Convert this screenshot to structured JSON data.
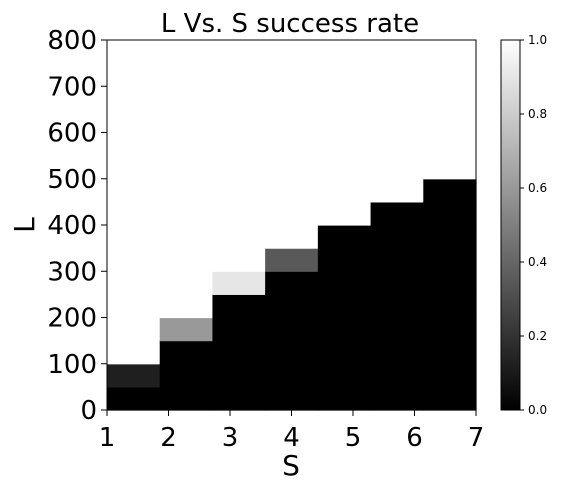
{
  "chart_data": {
    "type": "heatmap",
    "title": "L Vs. S success rate",
    "xlabel": "S",
    "ylabel": "L",
    "xlim": [
      1,
      7
    ],
    "ylim": [
      0,
      800
    ],
    "x_ticks": [
      "1",
      "2",
      "3",
      "4",
      "5",
      "6",
      "7"
    ],
    "y_ticks": [
      "0",
      "100",
      "200",
      "300",
      "400",
      "500",
      "600",
      "700",
      "800"
    ],
    "colormap": "gray",
    "colorbar": {
      "range": [
        0.0,
        1.0
      ],
      "ticks": [
        "0.0",
        "0.2",
        "0.4",
        "0.6",
        "0.8",
        "1.0"
      ]
    },
    "s_values": [
      1,
      2,
      3,
      4,
      5,
      6,
      7
    ],
    "l_values": [
      0,
      50,
      100,
      150,
      200,
      250,
      300,
      350,
      400,
      450,
      500,
      550,
      600,
      650,
      700,
      750,
      800
    ],
    "success_rate": [
      [
        0.0,
        0.12,
        1.0,
        1.0,
        1.0,
        1.0,
        1.0,
        1.0,
        1.0,
        1.0,
        1.0,
        1.0,
        1.0,
        1.0,
        1.0,
        1.0
      ],
      [
        0.0,
        0.0,
        0.0,
        0.6,
        1.0,
        1.0,
        1.0,
        1.0,
        1.0,
        1.0,
        1.0,
        1.0,
        1.0,
        1.0,
        1.0,
        1.0
      ],
      [
        0.0,
        0.0,
        0.0,
        0.0,
        0.0,
        0.9,
        1.0,
        1.0,
        1.0,
        1.0,
        1.0,
        1.0,
        1.0,
        1.0,
        1.0,
        1.0
      ],
      [
        0.0,
        0.0,
        0.0,
        0.0,
        0.0,
        0.0,
        0.35,
        1.0,
        1.0,
        1.0,
        1.0,
        1.0,
        1.0,
        1.0,
        1.0,
        1.0
      ],
      [
        0.0,
        0.0,
        0.0,
        0.0,
        0.0,
        0.0,
        0.0,
        0.0,
        1.0,
        1.0,
        1.0,
        1.0,
        1.0,
        1.0,
        1.0,
        1.0
      ],
      [
        0.0,
        0.0,
        0.0,
        0.0,
        0.0,
        0.0,
        0.0,
        0.0,
        0.0,
        1.0,
        1.0,
        1.0,
        1.0,
        1.0,
        1.0,
        1.0
      ],
      [
        0.0,
        0.0,
        0.0,
        0.0,
        0.0,
        0.0,
        0.0,
        0.0,
        0.0,
        0.0,
        1.0,
        1.0,
        1.0,
        1.0,
        1.0,
        1.0
      ]
    ],
    "grid": false
  }
}
